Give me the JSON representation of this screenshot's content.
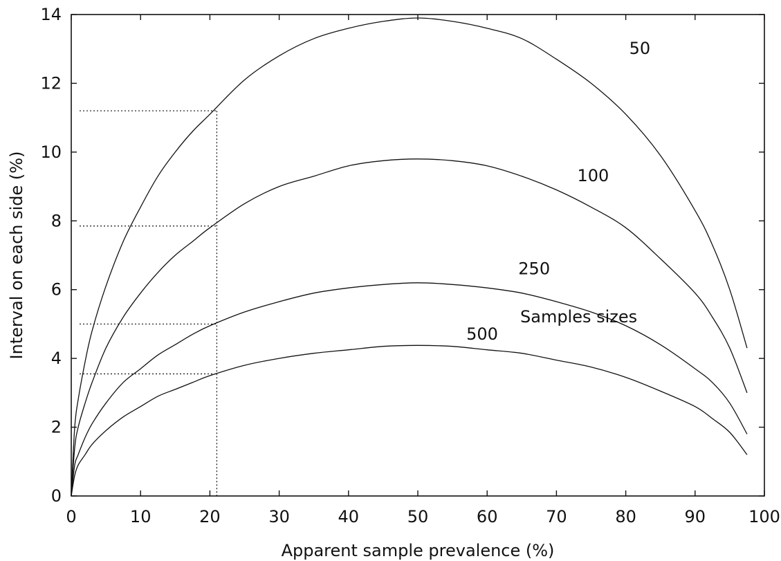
{
  "chart_data": {
    "type": "line",
    "title": "",
    "xlabel": "Apparent sample prevalence (%)",
    "ylabel": "Interval on each side (%)",
    "xlim": [
      0,
      100
    ],
    "ylim": [
      0,
      14
    ],
    "x_ticks": [
      "0",
      "10",
      "20",
      "30",
      "40",
      "50",
      "60",
      "70",
      "80",
      "90",
      "100"
    ],
    "y_ticks": [
      "0",
      "2",
      "4",
      "6",
      "8",
      "10",
      "12",
      "14"
    ],
    "grid": false,
    "annotation": "Samples sizes",
    "series": [
      {
        "name": "50",
        "x": [
          0,
          0.5,
          1,
          2,
          3,
          5,
          7.5,
          10,
          12.5,
          15,
          17.5,
          20,
          25,
          30,
          35,
          40,
          45,
          50,
          55,
          60,
          65,
          70,
          75,
          80,
          85,
          90,
          92.5,
          95,
          97.5
        ],
        "y": [
          0,
          2.0,
          2.8,
          3.9,
          4.8,
          6.1,
          7.4,
          8.4,
          9.3,
          10.0,
          10.6,
          11.1,
          12.1,
          12.8,
          13.3,
          13.6,
          13.8,
          13.9,
          13.8,
          13.6,
          13.3,
          12.7,
          12.0,
          11.1,
          9.9,
          8.3,
          7.3,
          6.0,
          4.3
        ]
      },
      {
        "name": "100",
        "x": [
          0,
          0.5,
          1,
          2,
          3,
          5,
          7.5,
          10,
          12.5,
          15,
          17.5,
          20,
          25,
          30,
          35,
          40,
          45,
          50,
          55,
          60,
          65,
          70,
          75,
          80,
          85,
          90,
          92.5,
          95,
          97.5
        ],
        "y": [
          0,
          1.4,
          2.0,
          2.7,
          3.3,
          4.3,
          5.2,
          5.9,
          6.5,
          7.0,
          7.4,
          7.8,
          8.5,
          9.0,
          9.3,
          9.6,
          9.75,
          9.8,
          9.75,
          9.6,
          9.3,
          8.9,
          8.4,
          7.8,
          6.9,
          5.9,
          5.2,
          4.3,
          3.0
        ]
      },
      {
        "name": "250",
        "x": [
          0,
          0.5,
          1,
          2,
          3,
          5,
          7.5,
          10,
          12.5,
          15,
          17.5,
          20,
          25,
          30,
          35,
          40,
          45,
          50,
          55,
          60,
          65,
          70,
          75,
          80,
          85,
          90,
          92.5,
          95,
          97.5
        ],
        "y": [
          0,
          0.9,
          1.2,
          1.7,
          2.1,
          2.7,
          3.3,
          3.7,
          4.1,
          4.4,
          4.7,
          4.95,
          5.35,
          5.65,
          5.9,
          6.05,
          6.15,
          6.2,
          6.15,
          6.05,
          5.9,
          5.65,
          5.35,
          4.95,
          4.4,
          3.7,
          3.3,
          2.7,
          1.8
        ]
      },
      {
        "name": "500",
        "x": [
          0,
          0.5,
          1,
          2,
          3,
          5,
          7.5,
          10,
          12.5,
          15,
          17.5,
          20,
          25,
          30,
          35,
          40,
          45,
          50,
          55,
          60,
          65,
          70,
          75,
          80,
          85,
          90,
          92.5,
          95,
          97.5
        ],
        "y": [
          0,
          0.6,
          0.9,
          1.2,
          1.5,
          1.9,
          2.3,
          2.6,
          2.9,
          3.1,
          3.3,
          3.5,
          3.8,
          4.0,
          4.15,
          4.25,
          4.35,
          4.38,
          4.35,
          4.25,
          4.15,
          3.95,
          3.75,
          3.45,
          3.05,
          2.6,
          2.25,
          1.85,
          1.2
        ]
      }
    ],
    "reference_lines": {
      "x": 21,
      "y_levels": [
        11.2,
        7.85,
        5.0,
        3.55
      ]
    }
  }
}
